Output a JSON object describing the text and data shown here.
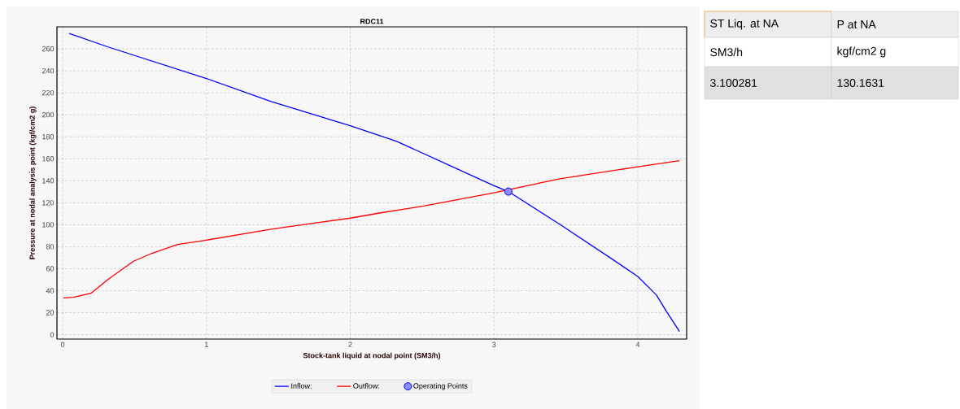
{
  "chart_data": [
    {
      "type": "line",
      "title": "RDC11",
      "xlabel": "Stock-tank liquid at nodal point (SM3/h)",
      "ylabel": "Pressure at nodal analysis point (kgf/cm2 g)",
      "xlim": [
        -0.04,
        4.34
      ],
      "ylim": [
        -4,
        280
      ],
      "xticks": [
        0,
        1,
        2,
        3,
        4
      ],
      "yticks": [
        0,
        20,
        40,
        60,
        80,
        100,
        120,
        140,
        160,
        180,
        200,
        220,
        240,
        260
      ],
      "grid": true,
      "legend": "bottom",
      "line_style": "solid",
      "series": [
        {
          "name": "Inflow:",
          "color": "#0000ff",
          "x": [
            0.045,
            0.32,
            1.0,
            1.45,
            2.0,
            2.32,
            2.69,
            3.0,
            3.1,
            3.45,
            3.83,
            4.0,
            4.13,
            4.2,
            4.29
          ],
          "values": [
            274,
            261.5,
            233,
            212,
            190,
            176,
            154,
            135.5,
            130.2,
            101,
            68,
            53,
            36,
            21,
            3
          ]
        },
        {
          "name": "Outflow:",
          "color": "#ff0000",
          "x": [
            0.004,
            0.074,
            0.196,
            0.32,
            0.49,
            0.62,
            0.8,
            1.0,
            1.45,
            1.7,
            2.0,
            2.22,
            2.51,
            3.0,
            3.45,
            4.0,
            4.29
          ],
          "values": [
            33.4,
            34,
            37.6,
            50.7,
            66.6,
            74,
            82,
            86,
            96,
            100.5,
            106,
            111,
            117,
            129,
            141.6,
            152.7,
            158.3
          ]
        },
        {
          "name": "Operating Points",
          "type": "scatter",
          "marker": "circle",
          "color": "#0000ff",
          "x": [
            3.100281
          ],
          "values": [
            130.1631
          ]
        }
      ]
    },
    {
      "type": "other",
      "categories": [
        "ST Liq. at NA",
        "P at NA"
      ],
      "annotations": [
        "SM3/h",
        "kgf/cm2 g"
      ],
      "values": [
        3.100281,
        130.1631
      ],
      "data_labels": true
    }
  ]
}
